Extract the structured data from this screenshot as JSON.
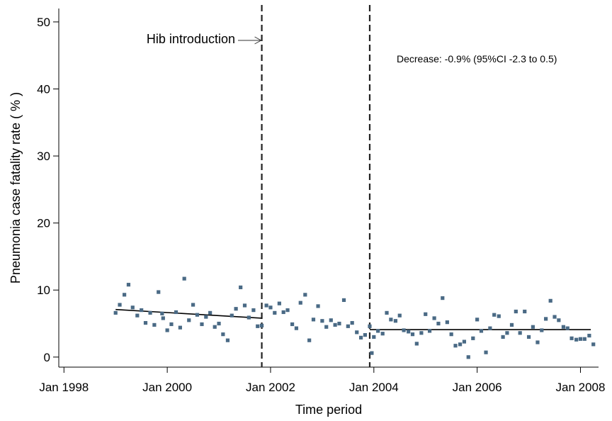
{
  "chart_data": {
    "type": "scatter",
    "xlabel": "Time period",
    "ylabel": "Pneumonia case fatality rate ( % )",
    "xlim": [
      1997.9,
      2008.35
    ],
    "ylim": [
      -1.5,
      52
    ],
    "x_ticks": [
      1998,
      2000,
      2002,
      2004,
      2006,
      2008
    ],
    "x_tick_labels": [
      "Jan 1998",
      "Jan 2000",
      "Jan 2002",
      "Jan 2004",
      "Jan 2006",
      "Jan 2008"
    ],
    "y_ticks": [
      0,
      10,
      20,
      30,
      40,
      50
    ],
    "y_tick_labels": [
      "0",
      "10",
      "20",
      "30",
      "40",
      "50"
    ],
    "grid": false,
    "marker_color": "#4a6a85",
    "vertical_lines": [
      {
        "x": 2001.83,
        "style": "dashed"
      },
      {
        "x": 2003.92,
        "style": "dashed"
      }
    ],
    "trend_lines": [
      {
        "x": [
          1999.0,
          2001.83
        ],
        "y": [
          7.1,
          5.8
        ]
      },
      {
        "x": [
          2003.92,
          2008.2
        ],
        "y": [
          4.1,
          4.1
        ]
      }
    ],
    "annotations": [
      {
        "text": "Hib introduction",
        "arrow_to_x": 2001.83
      },
      {
        "text": "Decrease: -0.9% (95%CI -2.3 to 0.5)"
      }
    ],
    "points": [
      [
        1999.0,
        6.6
      ],
      [
        1999.08,
        7.8
      ],
      [
        1999.17,
        9.3
      ],
      [
        1999.25,
        10.8
      ],
      [
        1999.33,
        7.4
      ],
      [
        1999.42,
        6.2
      ],
      [
        1999.5,
        7.0
      ],
      [
        1999.58,
        5.1
      ],
      [
        1999.67,
        6.6
      ],
      [
        1999.75,
        4.8
      ],
      [
        1999.83,
        9.7
      ],
      [
        1999.92,
        5.8
      ],
      [
        2000.0,
        4.0
      ],
      [
        2000.08,
        4.9
      ],
      [
        2000.17,
        6.7
      ],
      [
        2000.25,
        4.4
      ],
      [
        2000.33,
        11.7
      ],
      [
        2000.42,
        5.5
      ],
      [
        2000.5,
        7.8
      ],
      [
        2000.58,
        6.3
      ],
      [
        2000.67,
        4.9
      ],
      [
        2000.75,
        6.0
      ],
      [
        2000.83,
        6.6
      ],
      [
        2000.92,
        4.5
      ],
      [
        2001.0,
        5.0
      ],
      [
        2001.08,
        3.4
      ],
      [
        2001.17,
        2.5
      ],
      [
        2001.25,
        6.2
      ],
      [
        2001.33,
        7.2
      ],
      [
        2001.42,
        10.4
      ],
      [
        2001.5,
        7.7
      ],
      [
        2001.58,
        5.9
      ],
      [
        2001.67,
        7.0
      ],
      [
        2001.75,
        4.6
      ],
      [
        2001.83,
        4.7
      ],
      [
        1999.9,
        6.5
      ],
      [
        2001.92,
        7.7
      ],
      [
        2002.0,
        7.4
      ],
      [
        2002.08,
        6.6
      ],
      [
        2002.17,
        8.0
      ],
      [
        2002.25,
        6.7
      ],
      [
        2002.33,
        7.0
      ],
      [
        2002.42,
        4.9
      ],
      [
        2002.5,
        4.3
      ],
      [
        2002.58,
        8.1
      ],
      [
        2002.67,
        9.3
      ],
      [
        2002.75,
        2.5
      ],
      [
        2002.83,
        5.6
      ],
      [
        2002.92,
        7.6
      ],
      [
        2003.0,
        5.4
      ],
      [
        2003.08,
        4.5
      ],
      [
        2003.17,
        5.5
      ],
      [
        2003.25,
        4.8
      ],
      [
        2003.33,
        5.0
      ],
      [
        2003.42,
        8.5
      ],
      [
        2003.5,
        4.6
      ],
      [
        2003.58,
        5.1
      ],
      [
        2003.67,
        3.7
      ],
      [
        2003.75,
        2.9
      ],
      [
        2003.83,
        3.3
      ],
      [
        2003.92,
        4.6
      ],
      [
        2003.96,
        0.6
      ],
      [
        2004.0,
        3.0
      ],
      [
        2004.08,
        3.9
      ],
      [
        2004.17,
        3.5
      ],
      [
        2004.25,
        6.6
      ],
      [
        2004.33,
        5.6
      ],
      [
        2004.42,
        5.4
      ],
      [
        2004.5,
        6.2
      ],
      [
        2004.58,
        4.0
      ],
      [
        2004.67,
        3.8
      ],
      [
        2004.75,
        3.4
      ],
      [
        2004.83,
        2.0
      ],
      [
        2004.92,
        3.6
      ],
      [
        2005.0,
        6.4
      ],
      [
        2005.08,
        3.9
      ],
      [
        2005.17,
        5.8
      ],
      [
        2005.25,
        5.0
      ],
      [
        2005.33,
        8.8
      ],
      [
        2005.42,
        5.2
      ],
      [
        2005.5,
        3.4
      ],
      [
        2005.58,
        1.7
      ],
      [
        2005.67,
        1.9
      ],
      [
        2005.75,
        2.3
      ],
      [
        2005.83,
        0.0
      ],
      [
        2005.92,
        2.8
      ],
      [
        2006.0,
        5.6
      ],
      [
        2006.08,
        3.9
      ],
      [
        2006.17,
        0.7
      ],
      [
        2006.25,
        4.3
      ],
      [
        2006.33,
        6.3
      ],
      [
        2006.42,
        6.1
      ],
      [
        2006.5,
        3.0
      ],
      [
        2006.58,
        3.6
      ],
      [
        2006.67,
        4.8
      ],
      [
        2006.75,
        6.8
      ],
      [
        2006.83,
        3.6
      ],
      [
        2006.92,
        6.8
      ],
      [
        2007.0,
        3.0
      ],
      [
        2007.08,
        4.5
      ],
      [
        2007.17,
        2.2
      ],
      [
        2007.25,
        4.0
      ],
      [
        2007.33,
        5.7
      ],
      [
        2007.42,
        8.4
      ],
      [
        2007.5,
        6.0
      ],
      [
        2007.58,
        5.5
      ],
      [
        2007.67,
        4.5
      ],
      [
        2007.75,
        4.3
      ],
      [
        2007.83,
        2.8
      ],
      [
        2007.92,
        2.6
      ],
      [
        2008.0,
        2.7
      ],
      [
        2008.08,
        2.7
      ],
      [
        2008.17,
        3.2
      ],
      [
        2008.25,
        1.9
      ]
    ]
  }
}
